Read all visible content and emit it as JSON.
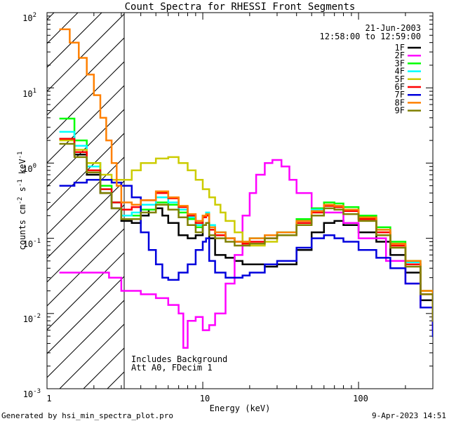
{
  "chart_data": {
    "type": "line",
    "title": "Count Spectra for RHESSI Front Segments",
    "xlabel": "Energy (keV)",
    "ylabel_parts": {
      "base": "counts cm",
      "exp1": "-2",
      "mid": " s",
      "exp2": "-1",
      "mid2": " keV",
      "exp3": "-1"
    },
    "x_scale": "log",
    "y_scale": "log",
    "xlim": [
      1,
      300
    ],
    "ylim": [
      0.001,
      100
    ],
    "x_tick_labels": [
      {
        "value": 1,
        "label": "1"
      },
      {
        "value": 10,
        "label": "10"
      },
      {
        "value": 100,
        "label": "100"
      }
    ],
    "y_tick_labels": [
      {
        "value": 100,
        "base": "10",
        "exp": "2"
      },
      {
        "value": 10,
        "base": "10",
        "exp": "1"
      },
      {
        "value": 1,
        "base": "10",
        "exp": "0"
      },
      {
        "value": 0.1,
        "base": "10",
        "exp": "-1"
      },
      {
        "value": 0.01,
        "base": "10",
        "exp": "-2"
      },
      {
        "value": 0.001,
        "base": "10",
        "exp": "-3"
      }
    ],
    "date": "21-Jun-2003",
    "time_range": "12:58:00 to 12:59:00",
    "attenuated_region_max_keV": 3,
    "notes": [
      "Includes Background",
      "Att A0, FDecim 1"
    ],
    "series": [
      {
        "name": "1F",
        "color": "#000000",
        "x": [
          1.2,
          1.5,
          1.8,
          2.2,
          2.6,
          3,
          3.5,
          4,
          4.5,
          5,
          5.5,
          6,
          7,
          8,
          9,
          10,
          10.5,
          11,
          12,
          14,
          16,
          18,
          20,
          25,
          30,
          40,
          50,
          60,
          70,
          80,
          100,
          130,
          160,
          200,
          250,
          300
        ],
        "y": [
          2.1,
          1.3,
          0.7,
          0.4,
          0.25,
          0.17,
          0.16,
          0.2,
          0.24,
          0.25,
          0.2,
          0.16,
          0.11,
          0.1,
          0.11,
          0.2,
          0.2,
          0.1,
          0.06,
          0.055,
          0.05,
          0.045,
          0.045,
          0.042,
          0.045,
          0.07,
          0.12,
          0.16,
          0.17,
          0.15,
          0.12,
          0.09,
          0.06,
          0.035,
          0.015,
          0.007
        ]
      },
      {
        "name": "2F",
        "color": "#ff00ff",
        "x": [
          1.2,
          1.5,
          2,
          2.5,
          3,
          4,
          5,
          6,
          7,
          7.5,
          8,
          9,
          10,
          11,
          12,
          14,
          16,
          18,
          20,
          22,
          25,
          28,
          32,
          36,
          40,
          50,
          60,
          80,
          100,
          150,
          200,
          250,
          300
        ],
        "y": [
          0.035,
          0.035,
          0.035,
          0.03,
          0.02,
          0.018,
          0.016,
          0.013,
          0.01,
          0.0035,
          0.008,
          0.009,
          0.006,
          0.007,
          0.01,
          0.025,
          0.06,
          0.2,
          0.4,
          0.7,
          1.0,
          1.1,
          0.9,
          0.6,
          0.4,
          0.25,
          0.22,
          0.16,
          0.1,
          0.05,
          0.025,
          0.012,
          0.006
        ]
      },
      {
        "name": "3F",
        "color": "#00ff00",
        "x": [
          1.2,
          1.5,
          1.8,
          2.2,
          2.6,
          3,
          3.5,
          4,
          5,
          6,
          7,
          8,
          9,
          10,
          10.5,
          11,
          12,
          14,
          16,
          18,
          20,
          25,
          30,
          40,
          50,
          60,
          70,
          80,
          100,
          130,
          160,
          200,
          250,
          300
        ],
        "y": [
          3.9,
          2.0,
          1.0,
          0.5,
          0.3,
          0.2,
          0.2,
          0.24,
          0.3,
          0.28,
          0.22,
          0.18,
          0.14,
          0.2,
          0.21,
          0.14,
          0.12,
          0.1,
          0.09,
          0.09,
          0.1,
          0.11,
          0.12,
          0.18,
          0.25,
          0.3,
          0.29,
          0.26,
          0.2,
          0.14,
          0.09,
          0.05,
          0.02,
          0.01
        ]
      },
      {
        "name": "4F",
        "color": "#00ffff",
        "x": [
          1.2,
          1.5,
          1.8,
          2.2,
          2.6,
          3,
          3.5,
          4,
          5,
          6,
          7,
          8,
          9,
          10,
          10.5,
          11,
          12,
          14,
          16,
          18,
          20,
          25,
          30,
          40,
          50,
          60,
          70,
          80,
          100,
          130,
          160,
          200,
          250,
          300
        ],
        "y": [
          2.6,
          1.7,
          0.9,
          0.45,
          0.3,
          0.2,
          0.22,
          0.28,
          0.35,
          0.3,
          0.24,
          0.19,
          0.15,
          0.2,
          0.22,
          0.15,
          0.12,
          0.1,
          0.09,
          0.09,
          0.1,
          0.11,
          0.12,
          0.17,
          0.24,
          0.28,
          0.27,
          0.24,
          0.19,
          0.13,
          0.085,
          0.048,
          0.02,
          0.009
        ]
      },
      {
        "name": "5F",
        "color": "#cccc00",
        "x": [
          1.2,
          1.5,
          1.8,
          2.2,
          2.6,
          3,
          3.5,
          4,
          5,
          6,
          7,
          8,
          9,
          10,
          11,
          12,
          13,
          14,
          16,
          18,
          20,
          25,
          30,
          40,
          50,
          60,
          70,
          80,
          100,
          130,
          160,
          200,
          250,
          300
        ],
        "y": [
          2.0,
          1.5,
          1.0,
          0.7,
          0.6,
          0.6,
          0.8,
          1.0,
          1.15,
          1.2,
          1.0,
          0.8,
          0.6,
          0.45,
          0.35,
          0.28,
          0.22,
          0.17,
          0.12,
          0.09,
          0.08,
          0.09,
          0.11,
          0.16,
          0.22,
          0.27,
          0.26,
          0.23,
          0.18,
          0.12,
          0.08,
          0.045,
          0.02,
          0.008
        ]
      },
      {
        "name": "6F",
        "color": "#ff0000",
        "x": [
          1.2,
          1.5,
          1.8,
          2.2,
          2.6,
          3,
          3.5,
          4,
          5,
          6,
          7,
          8,
          9,
          10,
          10.5,
          11,
          12,
          14,
          16,
          18,
          20,
          25,
          30,
          40,
          50,
          60,
          70,
          80,
          100,
          130,
          160,
          200,
          250,
          300
        ],
        "y": [
          2.1,
          1.4,
          0.8,
          0.45,
          0.3,
          0.24,
          0.26,
          0.32,
          0.4,
          0.34,
          0.26,
          0.2,
          0.16,
          0.19,
          0.2,
          0.13,
          0.11,
          0.1,
          0.09,
          0.085,
          0.09,
          0.1,
          0.11,
          0.16,
          0.22,
          0.27,
          0.26,
          0.23,
          0.18,
          0.12,
          0.08,
          0.045,
          0.018,
          0.008
        ]
      },
      {
        "name": "7F",
        "color": "#0000dd",
        "x": [
          1.2,
          1.5,
          1.8,
          2.2,
          2.6,
          3,
          3.5,
          4,
          4.5,
          5,
          5.5,
          6,
          7,
          8,
          9,
          10,
          10.5,
          11,
          12,
          14,
          16,
          18,
          20,
          25,
          30,
          40,
          50,
          60,
          70,
          80,
          100,
          130,
          160,
          200,
          250,
          300
        ],
        "y": [
          0.5,
          0.55,
          0.6,
          0.6,
          0.55,
          0.5,
          0.35,
          0.12,
          0.07,
          0.045,
          0.03,
          0.028,
          0.035,
          0.045,
          0.07,
          0.09,
          0.1,
          0.05,
          0.035,
          0.03,
          0.03,
          0.032,
          0.035,
          0.045,
          0.05,
          0.075,
          0.1,
          0.11,
          0.1,
          0.09,
          0.07,
          0.055,
          0.04,
          0.025,
          0.012,
          0.005
        ]
      },
      {
        "name": "8F",
        "color": "#ff8000",
        "x": [
          1.2,
          1.4,
          1.6,
          1.8,
          2.0,
          2.2,
          2.4,
          2.6,
          2.8,
          3,
          3.5,
          4,
          5,
          6,
          7,
          8,
          9,
          10,
          10.5,
          11,
          12,
          14,
          16,
          18,
          20,
          25,
          30,
          40,
          50,
          60,
          70,
          80,
          100,
          130,
          160,
          200,
          250,
          300
        ],
        "y": [
          60,
          40,
          25,
          15,
          8,
          4,
          2,
          1.0,
          0.5,
          0.3,
          0.28,
          0.32,
          0.42,
          0.35,
          0.27,
          0.21,
          0.17,
          0.2,
          0.21,
          0.14,
          0.12,
          0.1,
          0.09,
          0.09,
          0.1,
          0.11,
          0.12,
          0.17,
          0.23,
          0.28,
          0.27,
          0.24,
          0.19,
          0.13,
          0.085,
          0.05,
          0.02,
          0.009
        ]
      },
      {
        "name": "9F",
        "color": "#808000",
        "x": [
          1.2,
          1.5,
          1.8,
          2.2,
          2.6,
          3,
          3.5,
          4,
          5,
          6,
          7,
          8,
          9,
          10,
          10.5,
          11,
          12,
          14,
          16,
          18,
          20,
          25,
          30,
          40,
          50,
          60,
          70,
          80,
          100,
          130,
          160,
          200,
          250,
          300
        ],
        "y": [
          1.8,
          1.2,
          0.75,
          0.4,
          0.25,
          0.18,
          0.18,
          0.22,
          0.28,
          0.24,
          0.19,
          0.15,
          0.12,
          0.15,
          0.16,
          0.11,
          0.1,
          0.09,
          0.08,
          0.08,
          0.085,
          0.1,
          0.11,
          0.15,
          0.2,
          0.25,
          0.24,
          0.21,
          0.17,
          0.11,
          0.075,
          0.042,
          0.018,
          0.008
        ]
      }
    ]
  },
  "footer": {
    "generated_by": "Generated by hsi_min_spectra_plot.pro",
    "timestamp": "9-Apr-2023 14:51"
  }
}
